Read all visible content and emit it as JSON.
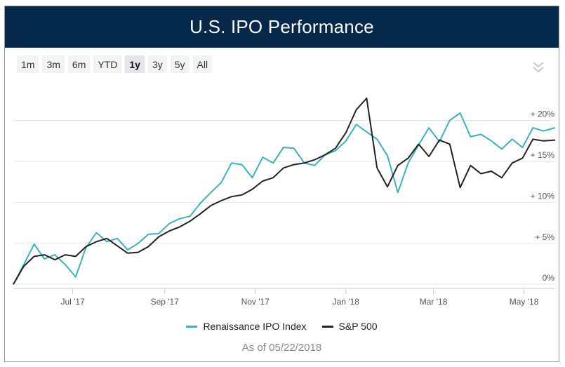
{
  "header": {
    "title": "U.S. IPO Performance"
  },
  "range_buttons": [
    {
      "label": "1m",
      "active": false
    },
    {
      "label": "3m",
      "active": false
    },
    {
      "label": "6m",
      "active": false
    },
    {
      "label": "YTD",
      "active": false
    },
    {
      "label": "1y",
      "active": true
    },
    {
      "label": "3y",
      "active": false
    },
    {
      "label": "5y",
      "active": false
    },
    {
      "label": "All",
      "active": false
    }
  ],
  "collapse_icon": "double-chevron-down-icon",
  "footer": {
    "as_of": "As of 05/22/2018"
  },
  "chart_data": {
    "type": "line",
    "title": "",
    "xlabel": "",
    "ylabel": "",
    "x_ticks": [
      "Jul '17",
      "Sep '17",
      "Nov '17",
      "Jan '18",
      "Mar '18",
      "May '18"
    ],
    "y_ticks": [
      "0%",
      "+ 5%",
      "+ 10%",
      "+ 15%",
      "+ 20%"
    ],
    "y_tick_values": [
      0,
      5,
      10,
      15,
      20
    ],
    "ylim": [
      -0.5,
      24.5
    ],
    "xlim": [
      "2017-05-22",
      "2018-05-22"
    ],
    "grid": "horizontal",
    "legend_position": "bottom",
    "x": [
      "2017-05-22",
      "2017-05-29",
      "2017-06-05",
      "2017-06-12",
      "2017-06-19",
      "2017-06-26",
      "2017-07-03",
      "2017-07-10",
      "2017-07-17",
      "2017-07-24",
      "2017-07-31",
      "2017-08-07",
      "2017-08-14",
      "2017-08-21",
      "2017-08-28",
      "2017-09-04",
      "2017-09-11",
      "2017-09-18",
      "2017-09-25",
      "2017-10-02",
      "2017-10-09",
      "2017-10-16",
      "2017-10-23",
      "2017-10-30",
      "2017-11-06",
      "2017-11-13",
      "2017-11-20",
      "2017-11-27",
      "2017-12-04",
      "2017-12-11",
      "2017-12-18",
      "2017-12-25",
      "2018-01-01",
      "2018-01-08",
      "2018-01-15",
      "2018-01-22",
      "2018-01-29",
      "2018-02-05",
      "2018-02-12",
      "2018-02-19",
      "2018-02-26",
      "2018-03-05",
      "2018-03-12",
      "2018-03-19",
      "2018-03-26",
      "2018-04-02",
      "2018-04-09",
      "2018-04-16",
      "2018-04-23",
      "2018-04-30",
      "2018-05-07",
      "2018-05-14",
      "2018-05-22"
    ],
    "series": [
      {
        "name": "Renaissance IPO Index",
        "color": "#3bb3b6",
        "values": [
          0.0,
          2.4,
          4.9,
          3.1,
          3.6,
          2.4,
          0.9,
          4.5,
          6.3,
          5.2,
          5.6,
          4.2,
          5.0,
          6.1,
          6.2,
          7.4,
          8.0,
          8.3,
          9.9,
          11.2,
          12.4,
          14.8,
          14.6,
          13.0,
          15.5,
          14.8,
          16.7,
          16.6,
          14.8,
          14.5,
          15.8,
          16.3,
          17.5,
          19.5,
          18.6,
          17.7,
          15.7,
          11.2,
          14.8,
          17.0,
          19.1,
          17.4,
          20.0,
          20.9,
          18.0,
          18.3,
          17.5,
          16.5,
          17.7,
          16.7,
          19.1,
          18.7,
          19.1
        ]
      },
      {
        "name": "S&P 500",
        "color": "#222222",
        "values": [
          0.0,
          2.2,
          3.4,
          3.6,
          3.0,
          3.6,
          3.4,
          4.6,
          5.2,
          5.6,
          4.7,
          3.8,
          3.9,
          4.6,
          5.8,
          6.5,
          7.0,
          7.7,
          8.6,
          9.6,
          10.2,
          10.7,
          10.9,
          11.6,
          12.6,
          13.0,
          14.2,
          14.6,
          14.8,
          15.2,
          15.8,
          16.6,
          18.5,
          21.3,
          22.7,
          14.2,
          11.9,
          14.5,
          15.4,
          17.1,
          15.6,
          17.6,
          17.1,
          11.8,
          14.5,
          13.5,
          13.8,
          13.0,
          14.8,
          15.4,
          17.7,
          17.5,
          17.6
        ]
      }
    ]
  }
}
